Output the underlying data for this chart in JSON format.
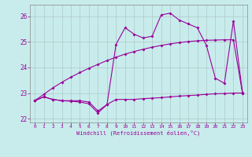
{
  "xlabel": "Windchill (Refroidissement éolien,°C)",
  "ylabel": "",
  "background_color": "#c8ecec",
  "grid_color": "#b0c8c8",
  "line_color": "#990099",
  "xlim": [
    -0.5,
    23.5
  ],
  "ylim": [
    21.85,
    26.45
  ],
  "xticks": [
    0,
    1,
    2,
    3,
    4,
    5,
    6,
    7,
    8,
    9,
    10,
    11,
    12,
    13,
    14,
    15,
    16,
    17,
    18,
    19,
    20,
    21,
    22,
    23
  ],
  "yticks": [
    22,
    23,
    24,
    25,
    26
  ],
  "line1_x": [
    0,
    1,
    2,
    3,
    4,
    5,
    6,
    7,
    8,
    9,
    10,
    11,
    12,
    13,
    14,
    15,
    16,
    17,
    18,
    19,
    20,
    21,
    22,
    23
  ],
  "line1_y": [
    22.7,
    22.85,
    22.75,
    22.7,
    22.7,
    22.7,
    22.65,
    22.3,
    22.55,
    22.75,
    22.75,
    22.75,
    22.78,
    22.8,
    22.82,
    22.85,
    22.88,
    22.9,
    22.92,
    22.95,
    22.97,
    22.98,
    23.0,
    23.0
  ],
  "line2_x": [
    0,
    1,
    2,
    3,
    4,
    5,
    6,
    7,
    8,
    9,
    10,
    11,
    12,
    13,
    14,
    15,
    16,
    17,
    18,
    19,
    20,
    21,
    22,
    23
  ],
  "line2_y": [
    22.7,
    22.95,
    23.2,
    23.42,
    23.62,
    23.8,
    23.97,
    24.12,
    24.27,
    24.4,
    24.52,
    24.62,
    24.71,
    24.79,
    24.86,
    24.92,
    24.97,
    25.01,
    25.04,
    25.06,
    25.07,
    25.08,
    25.08,
    23.0
  ],
  "line3_x": [
    0,
    1,
    2,
    3,
    4,
    5,
    6,
    7,
    8,
    9,
    10,
    11,
    12,
    13,
    14,
    15,
    16,
    17,
    18,
    19,
    20,
    21,
    22,
    23
  ],
  "line3_y": [
    22.7,
    22.85,
    22.75,
    22.7,
    22.68,
    22.65,
    22.58,
    22.22,
    22.55,
    24.9,
    25.55,
    25.3,
    25.15,
    25.22,
    26.05,
    26.12,
    25.85,
    25.7,
    25.55,
    24.87,
    23.58,
    23.38,
    25.82,
    23.02
  ],
  "marker": "D",
  "markersize": 2.0,
  "linewidth": 0.8
}
